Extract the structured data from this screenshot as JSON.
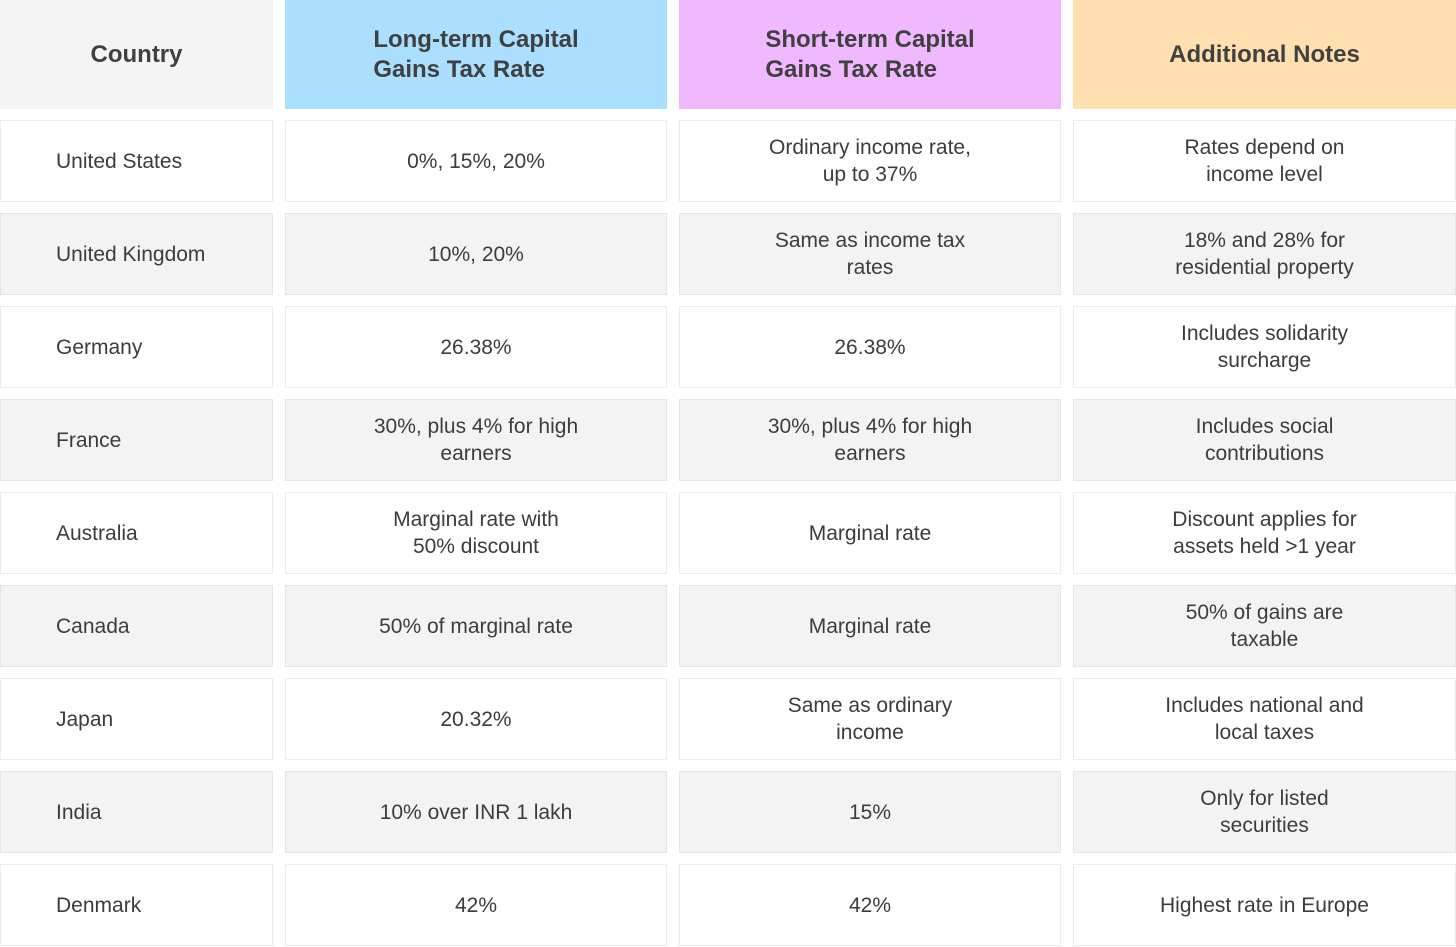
{
  "table": {
    "header": [
      [
        "Country"
      ],
      [
        "Long-term Capital",
        "Gains Tax Rate"
      ],
      [
        "Short-term Capital",
        "Gains Tax Rate"
      ],
      [
        "Additional Notes"
      ]
    ],
    "rows": [
      [
        [
          "United States"
        ],
        [
          "0%, 15%, 20%"
        ],
        [
          "Ordinary income rate,",
          "up to 37%"
        ],
        [
          "Rates depend on",
          "income level"
        ]
      ],
      [
        [
          "United Kingdom"
        ],
        [
          "10%, 20%"
        ],
        [
          "Same as income tax",
          "rates"
        ],
        [
          "18% and 28% for",
          "residential property"
        ]
      ],
      [
        [
          "Germany"
        ],
        [
          "26.38%"
        ],
        [
          "26.38%"
        ],
        [
          "Includes solidarity",
          "surcharge"
        ]
      ],
      [
        [
          "France"
        ],
        [
          "30%, plus 4% for high",
          "earners"
        ],
        [
          "30%, plus 4% for high",
          "earners"
        ],
        [
          "Includes social",
          "contributions"
        ]
      ],
      [
        [
          "Australia"
        ],
        [
          "Marginal rate with",
          "50% discount"
        ],
        [
          "Marginal rate"
        ],
        [
          "Discount applies for",
          "assets held >1 year"
        ]
      ],
      [
        [
          "Canada"
        ],
        [
          "50% of marginal rate"
        ],
        [
          "Marginal rate"
        ],
        [
          "50% of gains are",
          "taxable"
        ]
      ],
      [
        [
          "Japan"
        ],
        [
          "20.32%"
        ],
        [
          "Same as ordinary",
          "income"
        ],
        [
          "Includes national and",
          "local taxes"
        ]
      ],
      [
        [
          "India"
        ],
        [
          "10% over INR 1 lakh"
        ],
        [
          "15%"
        ],
        [
          "Only for listed",
          "securities"
        ]
      ],
      [
        [
          "Denmark"
        ],
        [
          "42%"
        ],
        [
          "42%"
        ],
        [
          "Highest rate in Europe"
        ]
      ]
    ]
  }
}
